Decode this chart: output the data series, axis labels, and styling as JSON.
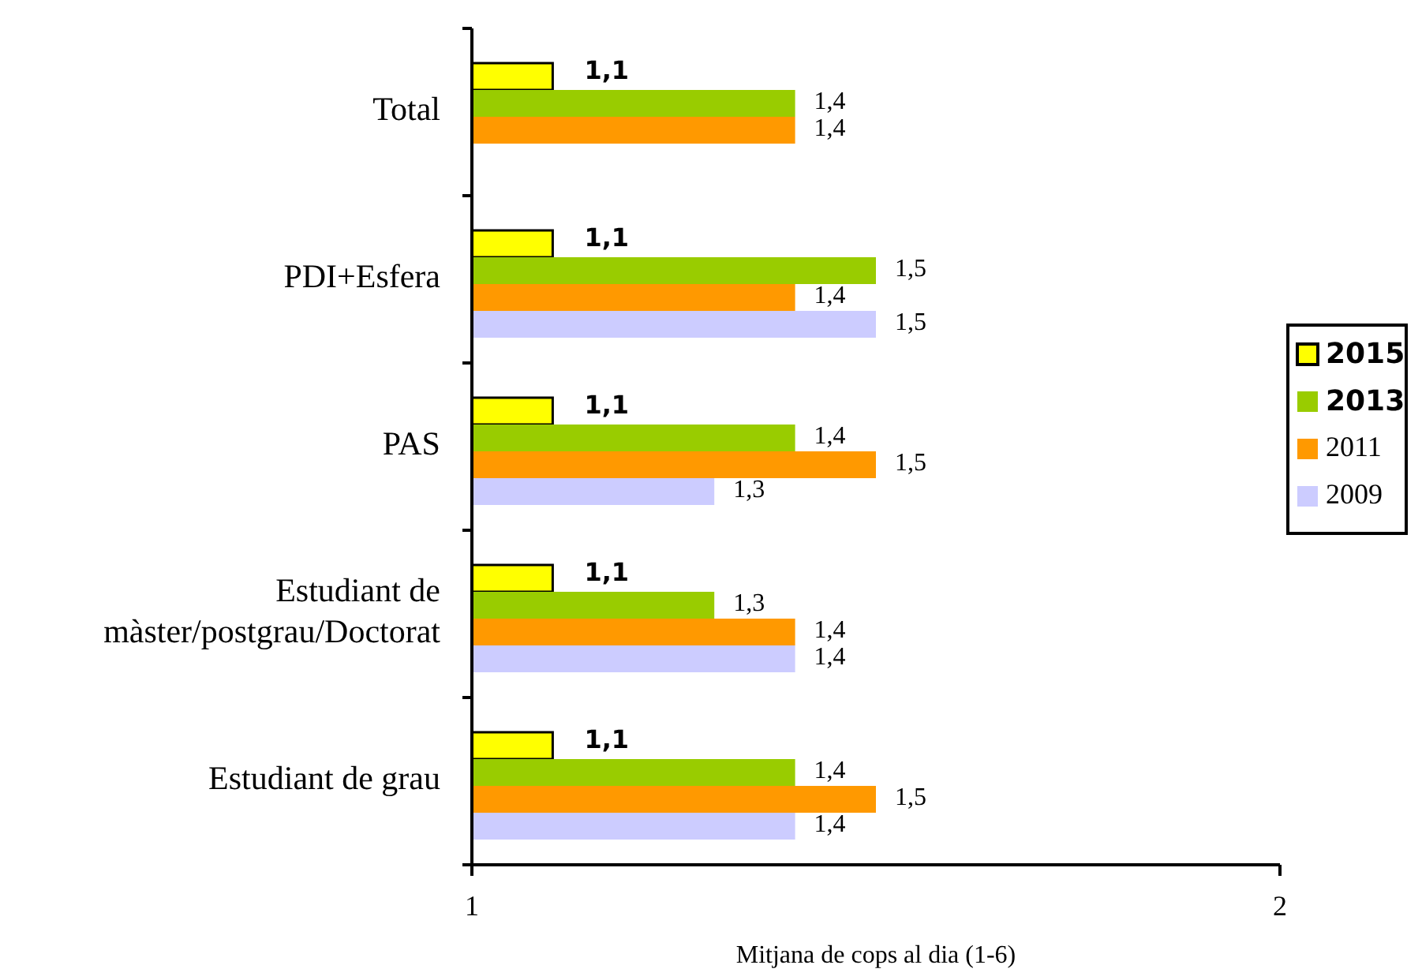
{
  "chart_data": {
    "type": "bar",
    "orientation": "horizontal",
    "xlabel": "Mitjana de cops al dia  (1-6)",
    "categories": [
      "Total",
      "PDI+Esfera",
      "PAS",
      "Estudiant de\nmàster/postgrau/Doctorat",
      "Estudiant de grau"
    ],
    "xlim": [
      1,
      2
    ],
    "xticks": [
      1,
      2
    ],
    "grid": false,
    "legend": "right",
    "series": [
      {
        "name": "2015",
        "color": "#ffff00",
        "values": [
          1.1,
          1.1,
          1.1,
          1.1,
          1.1
        ],
        "value_labels": [
          "1,1",
          "1,1",
          "1,1",
          "1,1",
          "1,1"
        ]
      },
      {
        "name": "2013",
        "color": "#99cc00",
        "values": [
          1.4,
          1.5,
          1.4,
          1.3,
          1.4
        ],
        "value_labels": [
          "1,4",
          "1,5",
          "1,4",
          "1,3",
          "1,4"
        ]
      },
      {
        "name": "2011",
        "color": "#ff9900",
        "values": [
          1.4,
          1.4,
          1.5,
          1.4,
          1.5
        ],
        "value_labels": [
          "1,4",
          "1,4",
          "1,5",
          "1,4",
          "1,5"
        ]
      },
      {
        "name": "2009",
        "color": "#ccccff",
        "values": [
          null,
          1.5,
          1.3,
          1.4,
          1.4
        ],
        "value_labels": [
          null,
          "1,5",
          "1,3",
          "1,4",
          "1,4"
        ]
      }
    ]
  }
}
